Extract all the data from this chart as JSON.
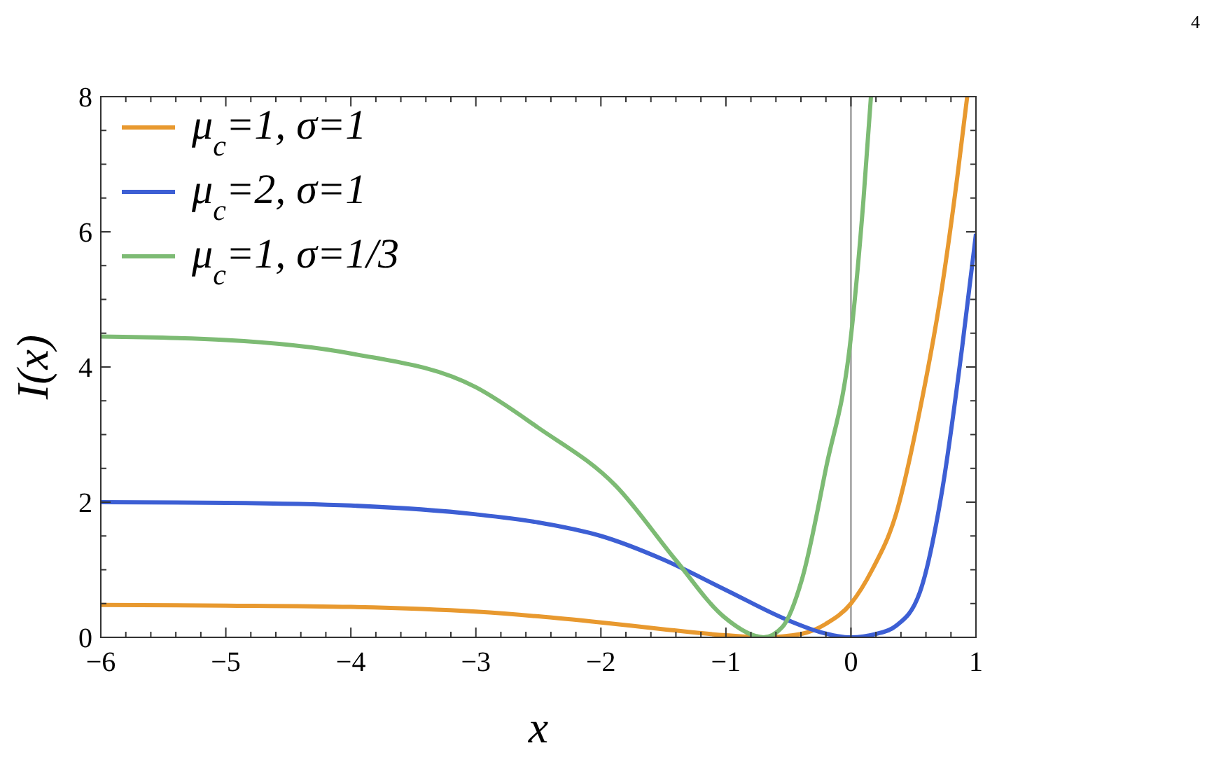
{
  "chart_data": {
    "type": "line",
    "xlabel": "x",
    "ylabel": "I(x)",
    "xlim": [
      -6,
      1
    ],
    "ylim": [
      0,
      8
    ],
    "xticks": [
      -6,
      {
        "value": -5.8,
        "label": null
      },
      {
        "value": -5.6,
        "label": null
      },
      {
        "value": -5.4,
        "label": null
      },
      {
        "value": -5.2,
        "label": null
      },
      -5,
      {
        "value": -4.8,
        "label": null
      },
      {
        "value": -4.6,
        "label": null
      },
      {
        "value": -4.4,
        "label": null
      },
      {
        "value": -4.2,
        "label": null
      },
      -4,
      {
        "value": -3.8,
        "label": null
      },
      {
        "value": -3.6,
        "label": null
      },
      {
        "value": -3.4,
        "label": null
      },
      {
        "value": -3.2,
        "label": null
      },
      -3,
      {
        "value": -2.8,
        "label": null
      },
      {
        "value": -2.6,
        "label": null
      },
      {
        "value": -2.4,
        "label": null
      },
      {
        "value": -2.2,
        "label": null
      },
      -2,
      {
        "value": -1.8,
        "label": null
      },
      {
        "value": -1.6,
        "label": null
      },
      {
        "value": -1.4,
        "label": null
      },
      {
        "value": -1.2,
        "label": null
      },
      -1,
      {
        "value": -0.8,
        "label": null
      },
      {
        "value": -0.6,
        "label": null
      },
      {
        "value": -0.4,
        "label": null
      },
      {
        "value": -0.2,
        "label": null
      },
      0,
      {
        "value": 0.2,
        "label": null
      },
      {
        "value": 0.4,
        "label": null
      },
      {
        "value": 0.6,
        "label": null
      },
      {
        "value": 0.8,
        "label": null
      },
      1
    ],
    "yticks": [
      0,
      {
        "value": 0.5,
        "label": null
      },
      {
        "value": 1,
        "label": null
      },
      {
        "value": 1.5,
        "label": null
      },
      2,
      {
        "value": 2.5,
        "label": null
      },
      {
        "value": 3,
        "label": null
      },
      {
        "value": 3.5,
        "label": null
      },
      4,
      {
        "value": 4.5,
        "label": null
      },
      {
        "value": 5,
        "label": null
      },
      {
        "value": 5.5,
        "label": null
      },
      6,
      {
        "value": 6.5,
        "label": null
      },
      {
        "value": 7,
        "label": null
      },
      {
        "value": 7.5,
        "label": null
      },
      8
    ],
    "legend": "top left",
    "grid": false,
    "marker": "none",
    "line_style": "solid",
    "ref_lines": [
      {
        "axis": "x",
        "value": 0,
        "color": "#999999"
      }
    ],
    "annotations": [
      "4"
    ],
    "series": [
      {
        "name": "μ$_{c}$=1, σ=1",
        "color": "#e8992f",
        "x": [
          -6,
          -5,
          -4,
          -3,
          -2.5,
          -2,
          -1.5,
          -1,
          -0.7,
          -0.4,
          -0.2,
          0,
          0.17,
          0.36,
          0.55,
          0.73,
          0.85,
          0.93
        ],
        "values": [
          0.48,
          0.47,
          0.45,
          0.38,
          0.31,
          0.22,
          0.12,
          0.03,
          0,
          0.05,
          0.2,
          0.5,
          1,
          1.82,
          3.35,
          5.2,
          6.8,
          8
        ]
      },
      {
        "name": "μ$_{c}$=2, σ=1",
        "color": "#3d5fd4",
        "x": [
          -6,
          -5,
          -4,
          -3,
          -2.5,
          -2,
          -1.5,
          -1,
          -0.5,
          -0.25,
          0,
          0.2,
          0.36,
          0.55,
          0.73,
          0.89,
          1
        ],
        "values": [
          2,
          1.99,
          1.95,
          1.82,
          1.7,
          1.5,
          1.15,
          0.7,
          0.25,
          0.08,
          0,
          0.05,
          0.17,
          0.66,
          2.18,
          4.3,
          5.97
        ]
      },
      {
        "name": "μ$_{c}$=1, σ=1/3",
        "color": "#7dbb74",
        "x": [
          -6,
          -5,
          -4,
          -3,
          -2.5,
          -1.88,
          -1.4,
          -1.02,
          -0.76,
          -0.7,
          -0.55,
          -0.39,
          -0.2,
          0,
          0.1,
          0.16
        ],
        "values": [
          4.45,
          4.4,
          4.2,
          3.7,
          3.1,
          2.24,
          1.14,
          0.31,
          0.02,
          0,
          0.15,
          0.87,
          2.5,
          4.45,
          6.47,
          8
        ]
      }
    ]
  }
}
